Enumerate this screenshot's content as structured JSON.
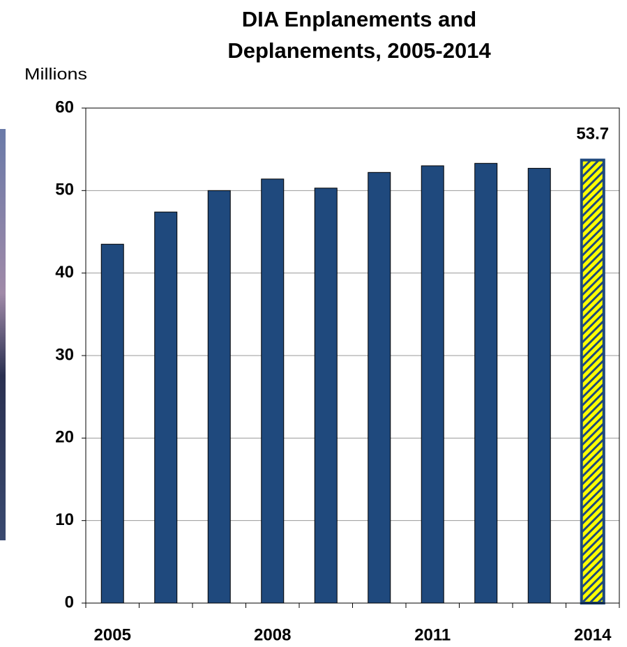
{
  "chart_data": {
    "type": "bar",
    "title": [
      "DIA Enplanements and",
      "Deplanements, 2005-2014"
    ],
    "ylabel": "Millions",
    "categories": [
      "2005",
      null,
      null,
      "2008",
      null,
      null,
      "2011",
      null,
      null,
      "2014"
    ],
    "values": [
      43.5,
      47.4,
      50.0,
      51.4,
      50.3,
      52.2,
      53.0,
      53.3,
      52.7,
      53.7
    ],
    "value_labels": [
      null,
      null,
      null,
      null,
      null,
      null,
      null,
      null,
      null,
      "53.7"
    ],
    "color": "#1f497d",
    "highlight": {
      "index": 9,
      "color": "#ffff00"
    },
    "ylim": [
      0,
      60
    ],
    "yticks": [
      0,
      10,
      20,
      30,
      40,
      50,
      60
    ],
    "grid": true
  }
}
